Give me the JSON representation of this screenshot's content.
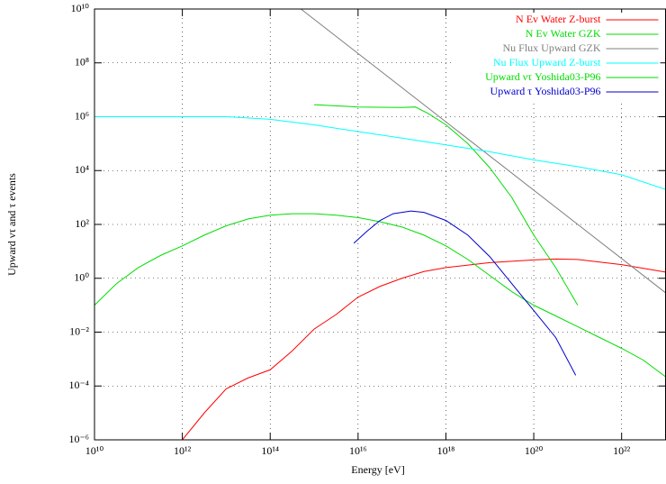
{
  "chart_data": {
    "type": "line",
    "xlabel": "Energy [eV]",
    "ylabel": "Upward ντ and τ events",
    "xscale": "log",
    "yscale": "log",
    "xlim": [
      10000000000.0,
      1e+23
    ],
    "ylim": [
      1e-06,
      10000000000.0
    ],
    "xticks": [
      {
        "value": 10000000000.0,
        "label": "10¹⁰"
      },
      {
        "value": 1000000000000.0,
        "label": "10¹²"
      },
      {
        "value": 100000000000000.0,
        "label": "10¹⁴"
      },
      {
        "value": 1e+16,
        "label": "10¹⁶"
      },
      {
        "value": 1e+18,
        "label": "10¹⁸"
      },
      {
        "value": 1e+20,
        "label": "10²⁰"
      },
      {
        "value": 1e+22,
        "label": "10²²"
      }
    ],
    "yticks": [
      {
        "value": 1e-06,
        "label": "10⁻⁶"
      },
      {
        "value": 0.0001,
        "label": "10⁻⁴"
      },
      {
        "value": 0.01,
        "label": "10⁻²"
      },
      {
        "value": 1,
        "label": "10⁰"
      },
      {
        "value": 100,
        "label": "10²"
      },
      {
        "value": 10000.0,
        "label": "10⁴"
      },
      {
        "value": 1000000.0,
        "label": "10⁶"
      },
      {
        "value": 100000000.0,
        "label": "10⁸"
      },
      {
        "value": 10000000000.0,
        "label": "10¹⁰"
      }
    ],
    "grid": true,
    "legend": "upper right",
    "series": [
      {
        "name": "N Ev Water Z-burst",
        "color": "#ff0000",
        "x": [
          1000000000000.0,
          3160000000000.0,
          10000000000000.0,
          31600000000000.0,
          100000000000000.0,
          316000000000000.0,
          1000000000000000.0,
          3160000000000000.0,
          1e+16,
          3.16e+16,
          1e+17,
          3.16e+17,
          1e+18,
          1e+19,
          1e+20,
          3.16e+20,
          1e+21,
          1e+22,
          1e+23
        ],
        "values": [
          1e-06,
          1e-05,
          7.9e-05,
          0.0002,
          0.0004,
          0.002,
          0.013,
          0.045,
          0.2,
          0.5,
          1,
          1.78,
          2.5,
          3.8,
          4.8,
          5.2,
          5.0,
          3.2,
          1.7
        ]
      },
      {
        "name": "N Ev Water GZK",
        "color": "#00dd00",
        "x": [
          1000000000000000.0,
          1e+16,
          1e+17,
          2e+17,
          4e+17,
          1e+18,
          3.16e+18,
          1e+19,
          3.16e+19,
          1e+20,
          3.16e+20,
          1e+21
        ],
        "values": [
          2800000.0,
          2300000.0,
          2200000.0,
          2300000.0,
          1300000.0,
          500000.0,
          100000.0,
          12600.0,
          1000,
          40,
          2.5,
          0.1
        ]
      },
      {
        "name": "Nu Flux Upward GZK",
        "color": "#808080",
        "x": [
          500000000000000.0,
          1e+23
        ],
        "values": [
          10000000000.0,
          0.29
        ]
      },
      {
        "name": "Nu Flux Upward Z-burst",
        "color": "#00ffff",
        "x": [
          10000000000.0,
          10000000000000.0,
          100000000000000.0,
          1000000000000000.0,
          1e+16,
          1e+17,
          1e+18,
          1e+19,
          1e+20,
          1e+21,
          1e+22,
          1e+23
        ],
        "values": [
          1000000.0,
          1000000.0,
          800000.0,
          500000.0,
          280000.0,
          160000.0,
          90000.0,
          50000.0,
          25000.0,
          14000.0,
          7000,
          2000
        ]
      },
      {
        "name": "Upward ντ Yoshida03-P96",
        "color": "#00dd00",
        "x": [
          10000000000.0,
          31600000000.0,
          100000000000.0,
          316000000000.0,
          1000000000000.0,
          3160000000000.0,
          10000000000000.0,
          31600000000000.0,
          100000000000000.0,
          316000000000000.0,
          1000000000000000.0,
          3160000000000000.0,
          1e+16,
          3.16e+16,
          1e+17,
          3.16e+17,
          1e+18,
          3.16e+18,
          1e+19,
          3.16e+19,
          1e+20,
          3.16e+20,
          1e+21,
          3.16e+21,
          1e+22,
          3.16e+22,
          1e+23
        ],
        "values": [
          0.1,
          0.63,
          2.5,
          7,
          16,
          40,
          89,
          160,
          220,
          250,
          250,
          220,
          180,
          126,
          80,
          40,
          16,
          5,
          1.26,
          0.32,
          0.1,
          0.04,
          0.016,
          0.0063,
          0.0025,
          0.0009,
          0.00022
        ]
      },
      {
        "name": "Upward τ Yoshida03-P96",
        "color": "#0000cc",
        "x": [
          8000000000000000.0,
          1.6e+16,
          3.16e+16,
          6.3e+16,
          1.6e+17,
          3.16e+17,
          1e+18,
          3.16e+18,
          1e+19,
          3.16e+19,
          1e+20,
          3.16e+20,
          9e+20
        ],
        "values": [
          20,
          56,
          140,
          250,
          316,
          280,
          140,
          40,
          6.3,
          0.63,
          0.063,
          0.0063,
          0.00025
        ]
      }
    ]
  }
}
